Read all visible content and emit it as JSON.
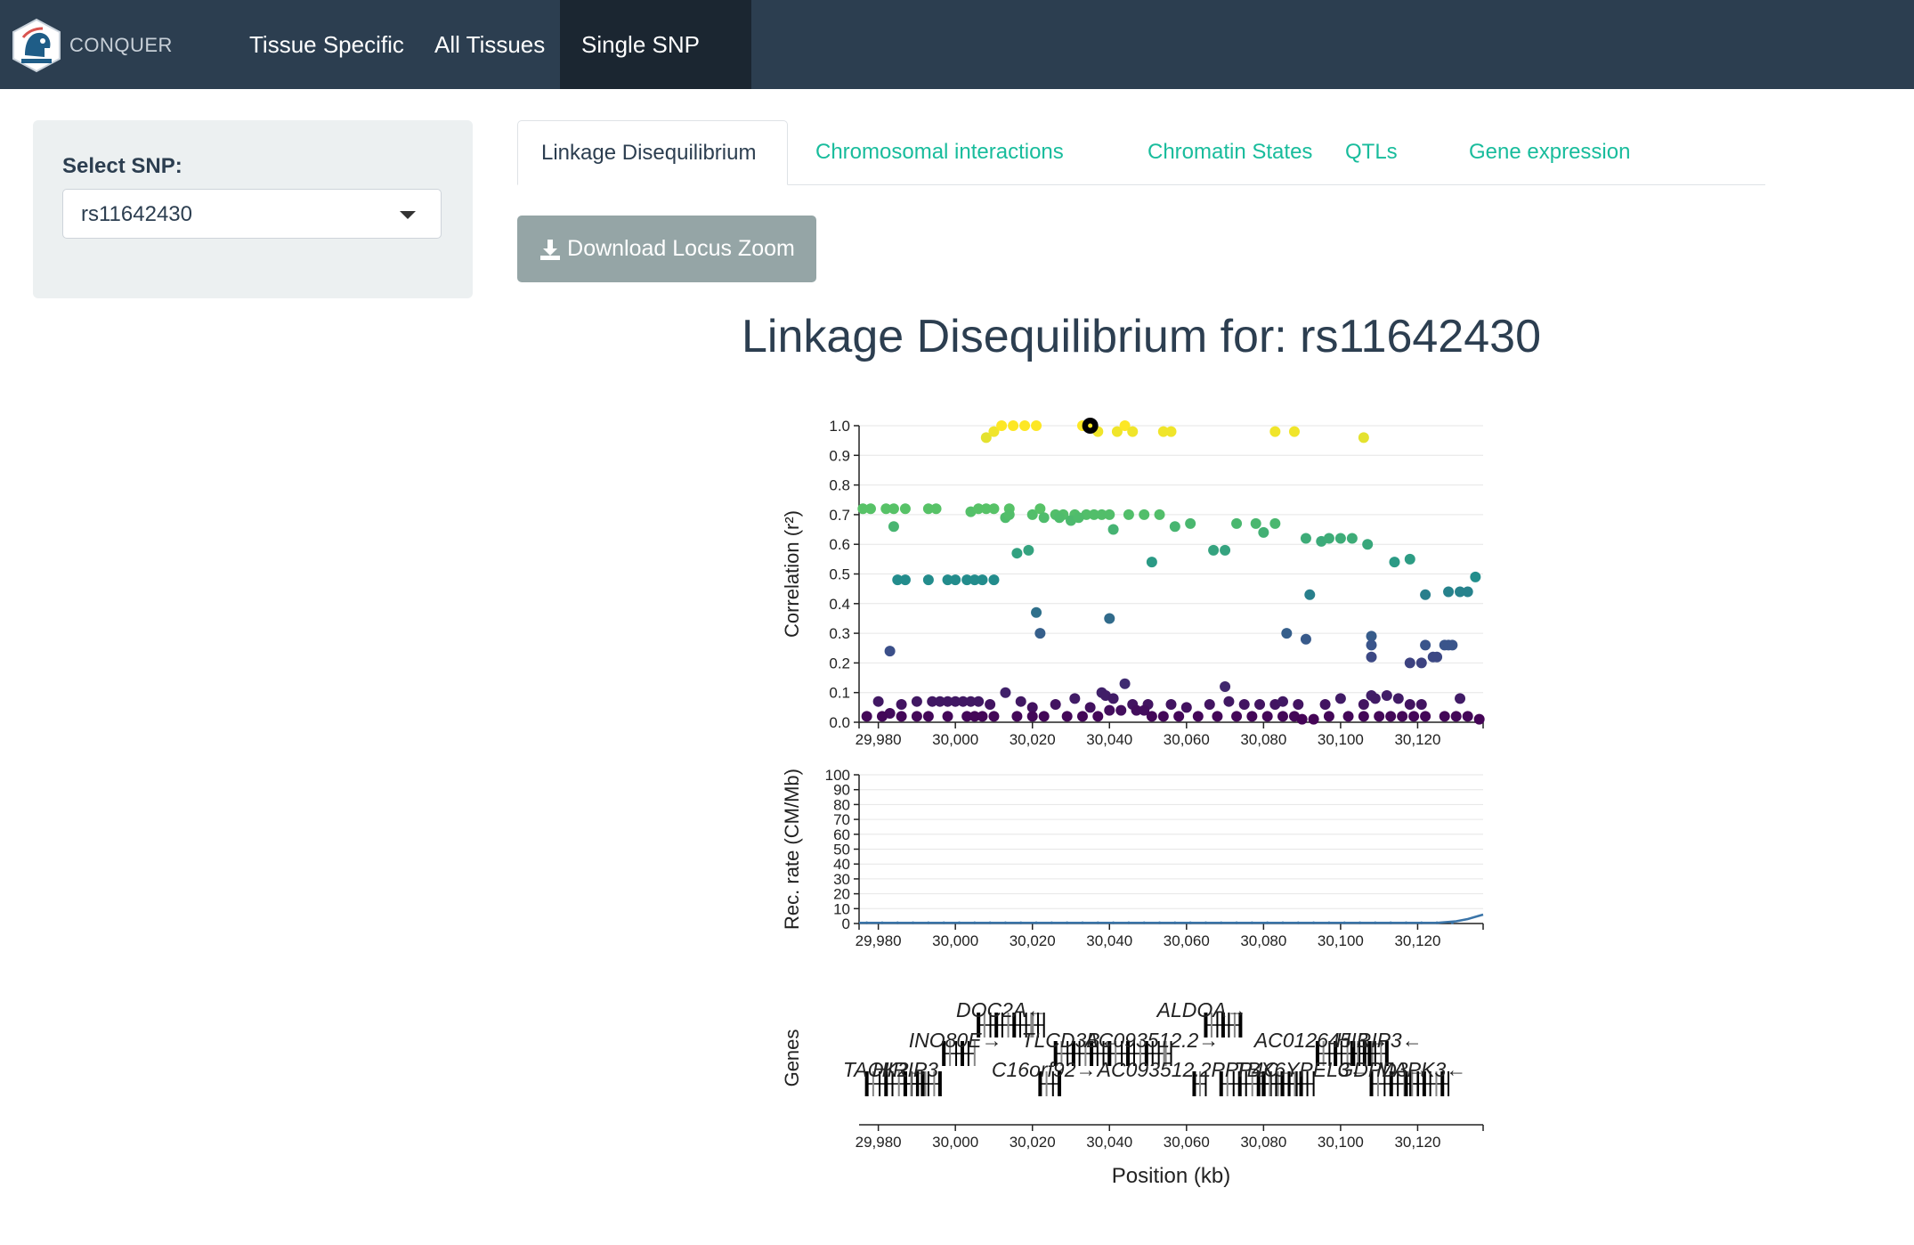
{
  "navbar": {
    "brand": "CONQUER",
    "items": [
      "Tissue Specific",
      "All Tissues",
      "Single SNP"
    ],
    "active": "Single SNP"
  },
  "sidebar": {
    "label": "Select SNP:",
    "selected": "rs11642430"
  },
  "tabs": {
    "items": [
      "Linkage Disequilibrium",
      "Chromosomal interactions",
      "Chromatin States",
      "QTLs",
      "Gene expression"
    ],
    "active": "Linkage Disequilibrium"
  },
  "download_button": "Download Locus Zoom",
  "title": "Linkage Disequilibrium for: rs11642430",
  "colors": {
    "navbar": "#2c3e50",
    "accent": "#18bc9c",
    "button": "#95a5a6"
  },
  "chart_data": [
    {
      "type": "scatter",
      "ylabel": "Correlation (r²)",
      "ylim": [
        0,
        1.0
      ],
      "yticks": [
        "0.0",
        "0.1",
        "0.2",
        "0.3",
        "0.4",
        "0.5",
        "0.6",
        "0.7",
        "0.8",
        "0.9",
        "1.0"
      ],
      "xlim": [
        29975,
        30137
      ],
      "xticks": [
        "29,980",
        "30,000",
        "30,020",
        "30,040",
        "30,060",
        "30,080",
        "30,100",
        "30,120"
      ],
      "lead_snp": {
        "name": "rs11642430",
        "x": 30035,
        "y": 1.0
      },
      "points": [
        [
          30008,
          0.96
        ],
        [
          30010,
          0.98
        ],
        [
          30012,
          1.0
        ],
        [
          30015,
          1.0
        ],
        [
          30018,
          1.0
        ],
        [
          30021,
          1.0
        ],
        [
          30033,
          1.0
        ],
        [
          30037,
          0.98
        ],
        [
          30042,
          0.98
        ],
        [
          30044,
          1.0
        ],
        [
          30046,
          0.98
        ],
        [
          30054,
          0.98
        ],
        [
          30056,
          0.98
        ],
        [
          30083,
          0.98
        ],
        [
          30088,
          0.98
        ],
        [
          30106,
          0.96
        ],
        [
          29976,
          0.72
        ],
        [
          29978,
          0.72
        ],
        [
          29982,
          0.72
        ],
        [
          29984,
          0.72
        ],
        [
          29987,
          0.72
        ],
        [
          29993,
          0.72
        ],
        [
          29995,
          0.72
        ],
        [
          30004,
          0.71
        ],
        [
          30006,
          0.72
        ],
        [
          30008,
          0.72
        ],
        [
          30010,
          0.72
        ],
        [
          30014,
          0.72
        ],
        [
          30020,
          0.7
        ],
        [
          30022,
          0.72
        ],
        [
          30028,
          0.7
        ],
        [
          30031,
          0.7
        ],
        [
          30034,
          0.7
        ],
        [
          30036,
          0.7
        ],
        [
          30040,
          0.7
        ],
        [
          30045,
          0.7
        ],
        [
          30049,
          0.7
        ],
        [
          30053,
          0.7
        ],
        [
          30026,
          0.7
        ],
        [
          30038,
          0.7
        ],
        [
          29984,
          0.66
        ],
        [
          30013,
          0.69
        ],
        [
          30014,
          0.7
        ],
        [
          30023,
          0.69
        ],
        [
          30027,
          0.69
        ],
        [
          30030,
          0.68
        ],
        [
          30032,
          0.69
        ],
        [
          30041,
          0.65
        ],
        [
          30057,
          0.66
        ],
        [
          30061,
          0.67
        ],
        [
          30073,
          0.67
        ],
        [
          30078,
          0.67
        ],
        [
          30080,
          0.64
        ],
        [
          30083,
          0.67
        ],
        [
          30091,
          0.62
        ],
        [
          30095,
          0.61
        ],
        [
          30097,
          0.62
        ],
        [
          30100,
          0.62
        ],
        [
          30103,
          0.62
        ],
        [
          30107,
          0.6
        ],
        [
          30070,
          0.58
        ],
        [
          30067,
          0.58
        ],
        [
          30019,
          0.58
        ],
        [
          30016,
          0.57
        ],
        [
          30051,
          0.54
        ],
        [
          30114,
          0.54
        ],
        [
          30118,
          0.55
        ],
        [
          29985,
          0.48
        ],
        [
          29987,
          0.48
        ],
        [
          29993,
          0.48
        ],
        [
          29998,
          0.48
        ],
        [
          30000,
          0.48
        ],
        [
          30003,
          0.48
        ],
        [
          30005,
          0.48
        ],
        [
          30007,
          0.48
        ],
        [
          30010,
          0.48
        ],
        [
          30092,
          0.43
        ],
        [
          30122,
          0.43
        ],
        [
          30128,
          0.44
        ],
        [
          30131,
          0.44
        ],
        [
          30133,
          0.44
        ],
        [
          30135,
          0.49
        ],
        [
          29983,
          0.24
        ],
        [
          30021,
          0.37
        ],
        [
          30022,
          0.3
        ],
        [
          30040,
          0.35
        ],
        [
          30086,
          0.3
        ],
        [
          30091,
          0.28
        ],
        [
          30108,
          0.29
        ],
        [
          30108,
          0.26
        ],
        [
          30108,
          0.22
        ],
        [
          30118,
          0.2
        ],
        [
          30121,
          0.2
        ],
        [
          30122,
          0.26
        ],
        [
          30124,
          0.22
        ],
        [
          30125,
          0.22
        ],
        [
          30127,
          0.26
        ],
        [
          30128,
          0.26
        ],
        [
          30129,
          0.26
        ],
        [
          29980,
          0.07
        ],
        [
          29983,
          0.03
        ],
        [
          29986,
          0.06
        ],
        [
          29990,
          0.07
        ],
        [
          29994,
          0.07
        ],
        [
          29996,
          0.07
        ],
        [
          29998,
          0.07
        ],
        [
          30000,
          0.07
        ],
        [
          30002,
          0.07
        ],
        [
          30004,
          0.07
        ],
        [
          30006,
          0.07
        ],
        [
          30009,
          0.06
        ],
        [
          30013,
          0.1
        ],
        [
          30017,
          0.07
        ],
        [
          30020,
          0.05
        ],
        [
          30026,
          0.06
        ],
        [
          30031,
          0.08
        ],
        [
          30035,
          0.05
        ],
        [
          30038,
          0.1
        ],
        [
          30039,
          0.09
        ],
        [
          30041,
          0.08
        ],
        [
          30044,
          0.13
        ],
        [
          30046,
          0.06
        ],
        [
          30050,
          0.06
        ],
        [
          30056,
          0.06
        ],
        [
          30060,
          0.05
        ],
        [
          30066,
          0.06
        ],
        [
          30070,
          0.12
        ],
        [
          30071,
          0.07
        ],
        [
          30075,
          0.06
        ],
        [
          30079,
          0.06
        ],
        [
          30083,
          0.06
        ],
        [
          30085,
          0.07
        ],
        [
          30089,
          0.06
        ],
        [
          30096,
          0.06
        ],
        [
          30100,
          0.08
        ],
        [
          30106,
          0.06
        ],
        [
          30108,
          0.09
        ],
        [
          30109,
          0.08
        ],
        [
          30112,
          0.09
        ],
        [
          30115,
          0.08
        ],
        [
          30118,
          0.06
        ],
        [
          30121,
          0.06
        ],
        [
          30131,
          0.08
        ],
        [
          29977,
          0.02
        ],
        [
          29981,
          0.02
        ],
        [
          29986,
          0.02
        ],
        [
          29990,
          0.02
        ],
        [
          29993,
          0.02
        ],
        [
          29998,
          0.02
        ],
        [
          30003,
          0.02
        ],
        [
          30005,
          0.02
        ],
        [
          30007,
          0.02
        ],
        [
          30010,
          0.02
        ],
        [
          30016,
          0.02
        ],
        [
          30020,
          0.02
        ],
        [
          30023,
          0.02
        ],
        [
          30029,
          0.02
        ],
        [
          30033,
          0.02
        ],
        [
          30037,
          0.02
        ],
        [
          30040,
          0.04
        ],
        [
          30043,
          0.04
        ],
        [
          30047,
          0.04
        ],
        [
          30049,
          0.04
        ],
        [
          30051,
          0.02
        ],
        [
          30054,
          0.02
        ],
        [
          30058,
          0.02
        ],
        [
          30063,
          0.02
        ],
        [
          30068,
          0.02
        ],
        [
          30073,
          0.02
        ],
        [
          30077,
          0.02
        ],
        [
          30081,
          0.02
        ],
        [
          30085,
          0.02
        ],
        [
          30088,
          0.02
        ],
        [
          30090,
          0.01
        ],
        [
          30093,
          0.01
        ],
        [
          30097,
          0.02
        ],
        [
          30102,
          0.02
        ],
        [
          30106,
          0.02
        ],
        [
          30110,
          0.02
        ],
        [
          30113,
          0.02
        ],
        [
          30116,
          0.02
        ],
        [
          30119,
          0.02
        ],
        [
          30122,
          0.02
        ],
        [
          30127,
          0.02
        ],
        [
          30130,
          0.02
        ],
        [
          30133,
          0.02
        ],
        [
          30136,
          0.01
        ]
      ]
    },
    {
      "type": "line",
      "ylabel": "Rec. rate (CM/Mb)",
      "ylim": [
        0,
        100
      ],
      "yticks": [
        "0",
        "10",
        "20",
        "30",
        "40",
        "50",
        "60",
        "70",
        "80",
        "90",
        "100"
      ],
      "xlim": [
        29975,
        30137
      ],
      "xticks": [
        "29,980",
        "30,000",
        "30,020",
        "30,040",
        "30,060",
        "30,080",
        "30,100",
        "30,120"
      ],
      "x": [
        29975,
        29990,
        30010,
        30040,
        30070,
        30100,
        30125,
        30130,
        30133,
        30137
      ],
      "y": [
        0.5,
        0.5,
        0.5,
        0.5,
        0.5,
        0.5,
        0.5,
        1.5,
        3,
        6
      ]
    },
    {
      "type": "genes",
      "ylabel": "Genes",
      "xlabel": "Position (kb)",
      "xlim": [
        29975,
        30137
      ],
      "xticks": [
        "29,980",
        "30,000",
        "30,020",
        "30,040",
        "30,060",
        "30,080",
        "30,100",
        "30,120"
      ],
      "labels": [
        {
          "text": "DOC2A←",
          "x": 30012,
          "row": 0
        },
        {
          "text": "ALDOA→",
          "x": 30064,
          "row": 0
        },
        {
          "text": "INO80E→",
          "x": 30000,
          "row": 1
        },
        {
          "text": "TLCD3B←",
          "x": 30030,
          "row": 1
        },
        {
          "text": "AC093512.2→",
          "x": 30051,
          "row": 1
        },
        {
          "text": "AC012645.3→",
          "x": 30095,
          "row": 1
        },
        {
          "text": "HIRIP3←",
          "x": 30110,
          "row": 1
        },
        {
          "text": "TAOK2→",
          "x": 29982,
          "row": 2
        },
        {
          "text": "HIRIP3",
          "x": 29987,
          "row": 2
        },
        {
          "text": "C16orf92→",
          "x": 30023,
          "row": 2
        },
        {
          "text": "AC093512.2PPP4C→",
          "x": 30063,
          "row": 2
        },
        {
          "text": "TBX6YPEL3←",
          "x": 30090,
          "row": 2
        },
        {
          "text": "GDPD3→",
          "x": 30111,
          "row": 2
        },
        {
          "text": "MAPK3←",
          "x": 30121,
          "row": 2
        }
      ],
      "genes": [
        {
          "start": 29977,
          "end": 29992,
          "row": 2
        },
        {
          "start": 29987,
          "end": 29996,
          "row": 2
        },
        {
          "start": 29997,
          "end": 30005,
          "row": 1
        },
        {
          "start": 30006,
          "end": 30023,
          "row": 0
        },
        {
          "start": 30022,
          "end": 30027,
          "row": 2
        },
        {
          "start": 30026,
          "end": 30040,
          "row": 1
        },
        {
          "start": 30040,
          "end": 30056,
          "row": 1
        },
        {
          "start": 30062,
          "end": 30065,
          "row": 2
        },
        {
          "start": 30065,
          "end": 30074,
          "row": 0
        },
        {
          "start": 30069,
          "end": 30090,
          "row": 2
        },
        {
          "start": 30080,
          "end": 30093,
          "row": 2
        },
        {
          "start": 30094,
          "end": 30108,
          "row": 1
        },
        {
          "start": 30103,
          "end": 30112,
          "row": 1
        },
        {
          "start": 30108,
          "end": 30120,
          "row": 2
        },
        {
          "start": 30117,
          "end": 30128,
          "row": 2
        }
      ]
    }
  ]
}
